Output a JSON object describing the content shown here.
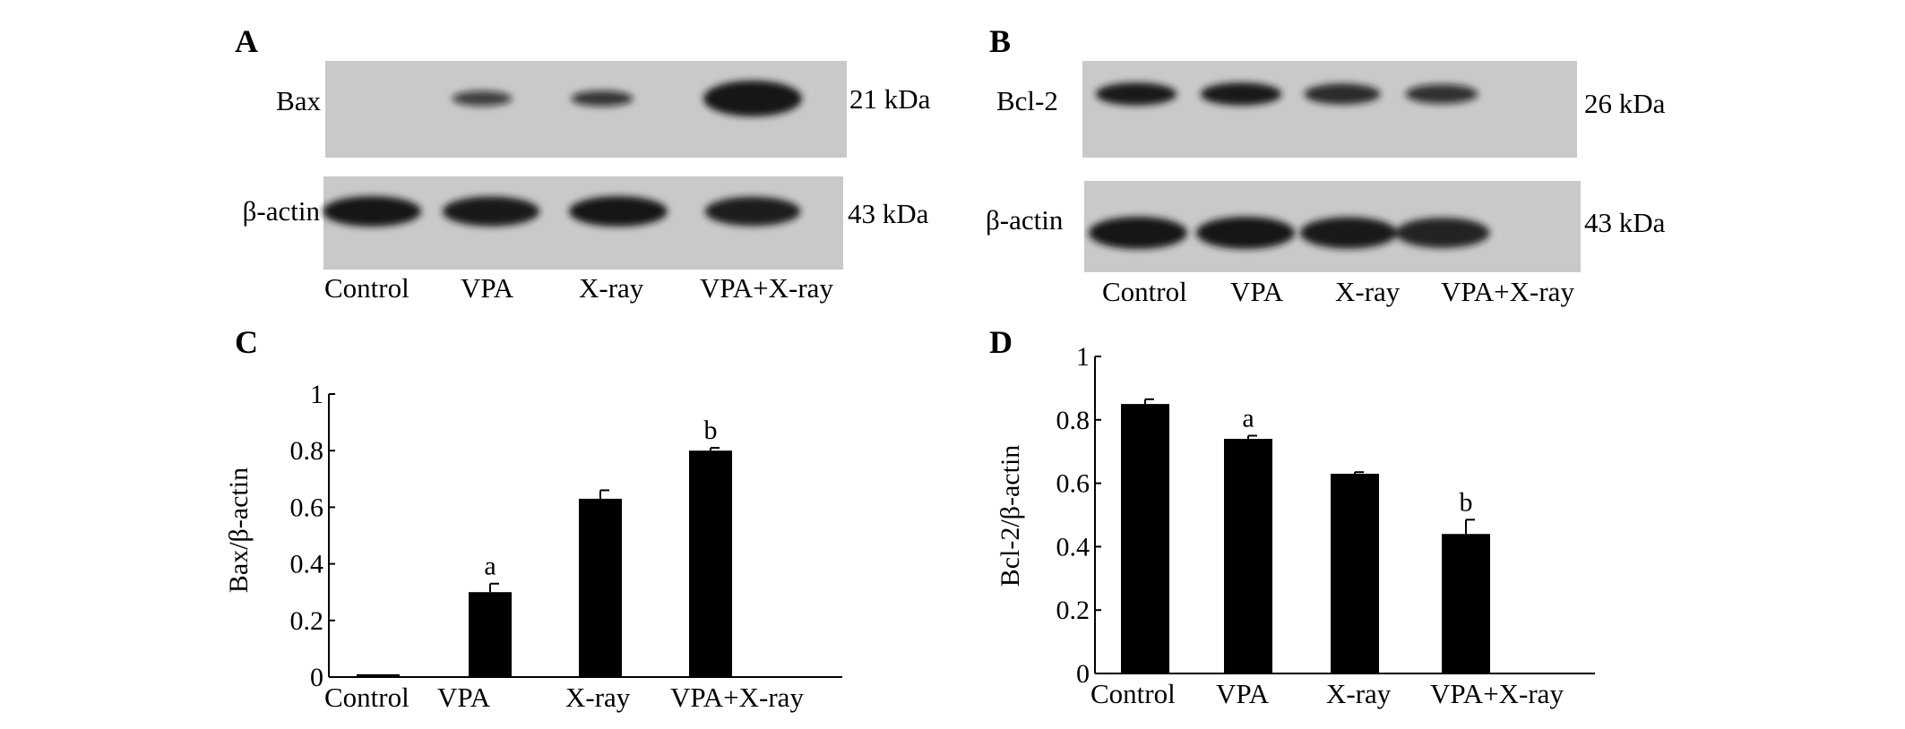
{
  "colors": {
    "bar": "#000000",
    "blot_background": "#c9c9c9",
    "blot_band": "#141414"
  },
  "panels": [
    {
      "letter": "A",
      "blots": [
        {
          "protein": "Bax",
          "size": "21 kDa",
          "band_intensity": [
            0.0,
            0.45,
            0.55,
            1.0
          ]
        },
        {
          "protein": "β-actin",
          "size": "43 kDa",
          "band_intensity": [
            1.0,
            0.95,
            1.0,
            0.9
          ]
        }
      ],
      "lanes": [
        "Control",
        "VPA",
        "X-ray",
        "VPA+X-ray"
      ]
    },
    {
      "letter": "B",
      "blots": [
        {
          "protein": "Bcl-2",
          "size": "26 kDa",
          "band_intensity": [
            0.95,
            0.95,
            0.75,
            0.6
          ]
        },
        {
          "protein": "β-actin",
          "size": "43 kDa",
          "band_intensity": [
            1.0,
            1.0,
            0.95,
            0.85
          ]
        }
      ],
      "lanes": [
        "Control",
        "VPA",
        "X-ray",
        "VPA+X-ray"
      ]
    }
  ],
  "chart_data": [
    {
      "panel": "C",
      "type": "bar",
      "categories": [
        "Control",
        "VPA",
        "X-ray",
        "VPA+X-ray"
      ],
      "values": [
        0.01,
        0.3,
        0.63,
        0.8
      ],
      "errors": [
        0.0,
        0.03,
        0.03,
        0.01
      ],
      "annotations": [
        "",
        "a",
        "",
        "b"
      ],
      "title": "",
      "xlabel": "",
      "ylabel": "Bax/β-actin",
      "ylim": [
        0,
        1
      ],
      "yticks": [
        "0",
        "0.2",
        "0.4",
        "0.6",
        "0.8",
        "1"
      ],
      "grid": false,
      "legend": "none"
    },
    {
      "panel": "D",
      "type": "bar",
      "categories": [
        "Control",
        "VPA",
        "X-ray",
        "VPA+X-ray"
      ],
      "values": [
        0.85,
        0.74,
        0.63,
        0.44
      ],
      "errors": [
        0.015,
        0.01,
        0.005,
        0.045
      ],
      "annotations": [
        "",
        "a",
        "",
        "b"
      ],
      "title": "",
      "xlabel": "",
      "ylabel": "Bcl-2/β-actin",
      "ylim": [
        0,
        1
      ],
      "yticks": [
        "0",
        "0.2",
        "0.4",
        "0.6",
        "0.8",
        "1"
      ],
      "grid": false,
      "legend": "none"
    }
  ]
}
